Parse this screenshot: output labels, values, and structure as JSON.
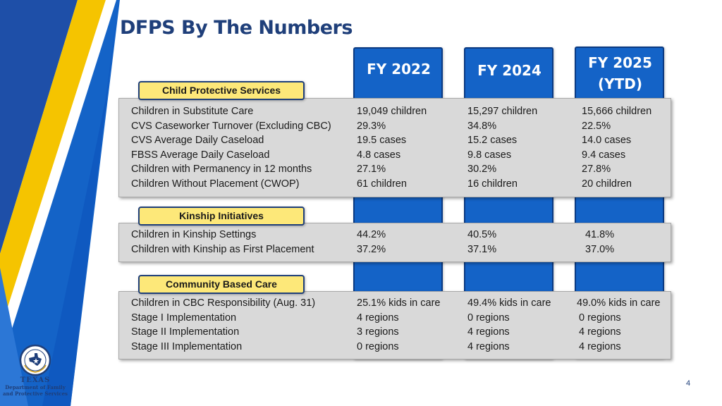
{
  "title": "DFPS By The Numbers",
  "columns": [
    "FY 2022",
    "FY 2024",
    "FY 2025",
    "(YTD)"
  ],
  "sections": {
    "cps": {
      "label": "Child Protective Services",
      "rows": [
        "Children in Substitute Care",
        "CVS Caseworker Turnover (Excluding CBC)",
        "CVS Average Daily Caseload",
        "FBSS Average Daily Caseload",
        "Children with Permanency in 12 months",
        "Children Without Placement (CWOP)"
      ],
      "fy2022": [
        "19,049 children",
        "29.3%",
        "19.5 cases",
        "4.8 cases",
        "27.1%",
        "61 children"
      ],
      "fy2024": [
        "15,297 children",
        "34.8%",
        "15.2 cases",
        "9.8 cases",
        "30.2%",
        "16 children"
      ],
      "fy2025": [
        "15,666 children",
        "22.5%",
        "14.0 cases",
        "9.4 cases",
        "27.8%",
        "20 children"
      ]
    },
    "kinship": {
      "label": "Kinship Initiatives",
      "rows": [
        "Children in Kinship Settings",
        "Children with Kinship as First Placement"
      ],
      "fy2022": [
        "44.2%",
        "37.2%"
      ],
      "fy2024": [
        "40.5%",
        "37.1%"
      ],
      "fy2025": [
        "41.8%",
        "37.0%"
      ]
    },
    "cbc": {
      "label": "Community Based Care",
      "rows": [
        "Children in CBC Responsibility (Aug. 31)",
        "Stage I Implementation",
        "Stage II Implementation",
        "Stage III Implementation"
      ],
      "fy2022": [
        "25.1% kids in care",
        "4 regions",
        "3 regions",
        "0 regions"
      ],
      "fy2024": [
        "49.4% kids in care",
        "0 regions",
        "4 regions",
        "4 regions"
      ],
      "fy2025": [
        "49.0% kids in care",
        "0 regions",
        "4 regions",
        "4 regions"
      ]
    }
  },
  "logo": {
    "badge": "DFPS",
    "state": "TEXAS",
    "line1": "Department of Family",
    "line2": "and Protective Services"
  },
  "page_number": "4",
  "colors": {
    "navy": "#1f3f7a",
    "column_blue": "#1463c7",
    "tab_yellow": "#fde879",
    "panel_gray": "#d9d9d9",
    "stripe_yellow": "#f5c400"
  }
}
